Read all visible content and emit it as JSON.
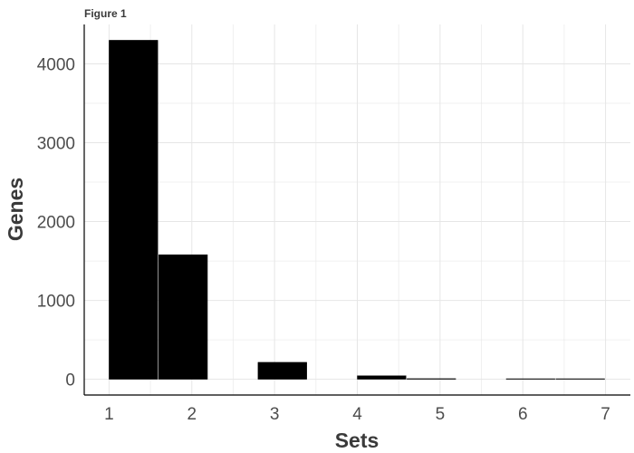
{
  "figure_label": "Figure 1",
  "chart_data": {
    "type": "bar",
    "title": "",
    "xlabel": "Sets",
    "ylabel": "Genes",
    "x_ticks": [
      1,
      2,
      3,
      4,
      5,
      6,
      7
    ],
    "y_ticks": [
      0,
      1000,
      2000,
      3000,
      4000
    ],
    "xlim": [
      0.7,
      7.3
    ],
    "ylim": [
      -200,
      4500
    ],
    "grid": true,
    "legend": "none",
    "bar_color": "#000000",
    "bars": [
      {
        "x_start": 1.0,
        "x_end": 1.6,
        "value": 4300
      },
      {
        "x_start": 1.6,
        "x_end": 2.2,
        "value": 1580
      },
      {
        "x_start": 2.8,
        "x_end": 3.4,
        "value": 215
      },
      {
        "x_start": 4.0,
        "x_end": 4.6,
        "value": 45
      },
      {
        "x_start": 4.6,
        "x_end": 5.2,
        "value": 8
      },
      {
        "x_start": 5.8,
        "x_end": 6.4,
        "value": 2
      },
      {
        "x_start": 6.4,
        "x_end": 7.0,
        "value": 1
      }
    ]
  }
}
